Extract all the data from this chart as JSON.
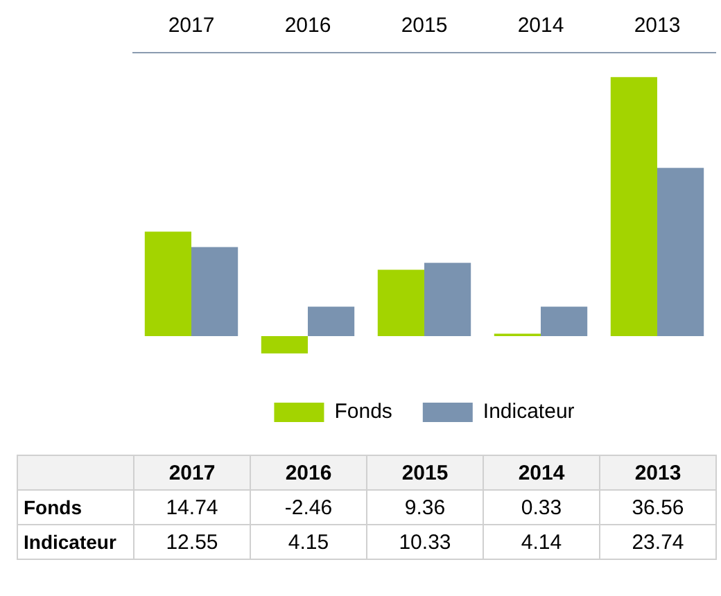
{
  "chart_data": {
    "type": "bar",
    "categories": [
      "2017",
      "2016",
      "2015",
      "2014",
      "2013"
    ],
    "series": [
      {
        "name": "Fonds",
        "color": "#a3d400",
        "values": [
          14.74,
          -2.46,
          9.36,
          0.33,
          36.56
        ]
      },
      {
        "name": "Indicateur",
        "color": "#7a93b0",
        "values": [
          12.55,
          4.15,
          10.33,
          4.14,
          23.74
        ]
      }
    ],
    "data_labels": true,
    "legend": "bottom",
    "grid": false
  }
}
